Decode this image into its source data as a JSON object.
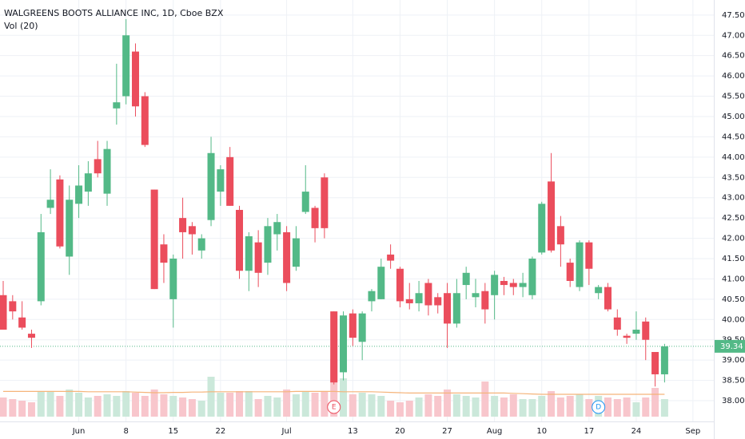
{
  "chart_data": {
    "type": "candlestick",
    "title": "WALGREENS BOOTS ALLIANCE INC, 1D, Cboe BZX",
    "volume_title": "Vol (20)",
    "categories": [
      null,
      null,
      null,
      null,
      null,
      null,
      null,
      null,
      "Jun",
      null,
      null,
      null,
      null,
      "8",
      null,
      null,
      null,
      null,
      "15",
      null,
      null,
      null,
      null,
      "22",
      null,
      null,
      null,
      null,
      null,
      null,
      "Jul",
      null,
      null,
      null,
      null,
      null,
      null,
      "13",
      null,
      null,
      null,
      null,
      "20",
      null,
      null,
      null,
      null,
      "27",
      null,
      null,
      null,
      null,
      "Aug",
      null,
      null,
      null,
      null,
      "10",
      null,
      null,
      null,
      null,
      "17",
      null,
      null,
      null,
      null,
      "24",
      null,
      null,
      null
    ],
    "future_categories": [
      null,
      null,
      "Sep"
    ],
    "open": [
      40.6,
      40.45,
      40.05,
      39.65,
      40.45,
      42.75,
      43.45,
      41.55,
      42.85,
      43.15,
      43.95,
      43.1,
      45.2,
      45.5,
      46.6,
      45.5,
      43.2,
      41.85,
      40.5,
      42.5,
      42.3,
      41.7,
      42.45,
      43.15,
      44.0,
      42.7,
      41.2,
      41.9,
      41.4,
      42.1,
      42.15,
      41.3,
      42.65,
      42.75,
      43.5,
      40.2,
      38.7,
      40.15,
      39.45,
      40.45,
      40.5,
      41.6,
      41.25,
      40.5,
      40.4,
      40.9,
      40.55,
      40.65,
      39.9,
      40.85,
      40.55,
      40.7,
      40.6,
      40.95,
      40.9,
      40.8,
      40.6,
      41.65,
      43.4,
      42.3,
      41.4,
      40.8,
      41.9,
      40.65,
      40.8,
      40.05,
      39.6,
      39.65,
      39.95,
      39.2,
      38.65
    ],
    "high": [
      40.95,
      40.6,
      40.45,
      39.75,
      42.6,
      43.7,
      43.55,
      43.3,
      43.8,
      43.9,
      44.4,
      44.4,
      46.3,
      47.4,
      46.8,
      45.6,
      43.2,
      42.1,
      41.6,
      43.0,
      42.4,
      42.1,
      44.5,
      43.8,
      44.25,
      42.8,
      42.15,
      42.2,
      42.5,
      42.6,
      42.3,
      42.3,
      43.8,
      42.8,
      43.6,
      40.2,
      40.2,
      40.25,
      40.2,
      40.75,
      41.5,
      41.85,
      41.3,
      40.9,
      40.95,
      41.0,
      40.65,
      40.9,
      41.0,
      41.3,
      41.0,
      40.9,
      41.2,
      41.05,
      41.0,
      41.15,
      41.55,
      42.9,
      44.1,
      42.55,
      41.5,
      41.95,
      41.95,
      40.85,
      40.9,
      40.25,
      39.65,
      40.2,
      40.05,
      39.2,
      39.4
    ],
    "low": [
      39.75,
      40.0,
      39.75,
      39.3,
      40.35,
      42.6,
      41.75,
      41.1,
      42.5,
      42.8,
      43.5,
      42.8,
      44.8,
      45.3,
      45.0,
      44.25,
      40.75,
      40.9,
      39.8,
      41.5,
      41.6,
      41.5,
      42.3,
      42.8,
      42.8,
      41.0,
      40.7,
      40.8,
      41.1,
      41.7,
      40.7,
      41.2,
      42.6,
      41.9,
      42.0,
      38.4,
      38.5,
      39.35,
      39.0,
      40.2,
      40.5,
      41.25,
      40.3,
      40.25,
      40.2,
      40.1,
      40.15,
      39.3,
      39.8,
      40.5,
      40.3,
      39.9,
      40.0,
      40.6,
      40.6,
      40.55,
      40.5,
      41.6,
      41.65,
      41.3,
      40.8,
      40.7,
      40.85,
      40.5,
      40.2,
      39.6,
      39.4,
      39.5,
      39.0,
      38.35,
      38.45
    ],
    "close": [
      39.75,
      40.2,
      39.8,
      39.55,
      42.15,
      42.95,
      41.8,
      42.95,
      43.3,
      43.6,
      43.6,
      44.2,
      45.35,
      47.0,
      45.25,
      44.3,
      40.75,
      41.4,
      41.5,
      42.15,
      42.1,
      42.0,
      44.1,
      43.7,
      42.8,
      41.2,
      42.05,
      41.15,
      42.3,
      42.4,
      40.9,
      42.0,
      43.15,
      42.25,
      42.25,
      38.45,
      40.1,
      39.55,
      40.15,
      40.7,
      41.3,
      41.45,
      40.45,
      40.4,
      40.65,
      40.35,
      40.35,
      39.9,
      40.65,
      41.15,
      40.65,
      40.25,
      41.1,
      40.85,
      40.8,
      40.9,
      41.5,
      42.85,
      41.7,
      41.85,
      40.95,
      41.9,
      41.25,
      40.8,
      40.25,
      39.75,
      39.55,
      39.75,
      39.5,
      38.65,
      39.34
    ],
    "volume": [
      6.0,
      5.5,
      5.0,
      4.5,
      7.8,
      7.8,
      6.5,
      8.5,
      7.5,
      6.0,
      6.5,
      7.0,
      6.5,
      8.0,
      7.5,
      6.5,
      8.5,
      7.0,
      6.5,
      6.0,
      5.5,
      5.0,
      12.5,
      7.5,
      7.5,
      8.0,
      8.0,
      5.5,
      6.5,
      6.0,
      8.5,
      7.0,
      8.0,
      7.5,
      8.0,
      18.0,
      12.0,
      7.0,
      7.5,
      7.0,
      6.5,
      5.0,
      4.5,
      5.0,
      6.0,
      7.0,
      6.5,
      8.5,
      7.0,
      6.5,
      6.0,
      11.0,
      6.5,
      6.0,
      7.0,
      5.5,
      5.5,
      6.5,
      8.0,
      6.0,
      6.5,
      7.0,
      5.5,
      6.5,
      6.0,
      5.5,
      6.0,
      4.5,
      6.0,
      9.0,
      5.5
    ],
    "volume_ma": [
      7.9,
      7.9,
      7.9,
      7.9,
      7.9,
      7.9,
      7.9,
      7.9,
      7.9,
      7.8,
      7.8,
      7.8,
      7.8,
      7.8,
      7.7,
      7.6,
      7.5,
      7.5,
      7.6,
      7.6,
      7.7,
      7.7,
      7.8,
      7.8,
      7.8,
      7.8,
      7.8,
      7.8,
      7.8,
      7.8,
      7.8,
      7.9,
      7.9,
      7.9,
      7.9,
      7.9,
      7.8,
      7.8,
      7.8,
      7.8,
      7.7,
      7.6,
      7.5,
      7.4,
      7.4,
      7.4,
      7.4,
      7.4,
      7.4,
      7.4,
      7.4,
      7.4,
      7.4,
      7.4,
      7.3,
      7.2,
      7.1,
      7.0,
      7.0,
      7.0,
      7.0,
      7.0,
      7.0,
      7.0,
      7.0,
      7.0,
      7.0,
      7.0,
      7.0,
      7.0,
      7.0
    ],
    "up_color": "#53b987",
    "down_color": "#eb4d5c",
    "volume_up_color": "#cbe8da",
    "volume_down_color": "#f8c6cc",
    "volume_ma_color": "#f5b47a",
    "last_price": 39.34,
    "events": [
      {
        "label": "E",
        "candle": 35
      },
      {
        "label": "D",
        "candle": 63
      }
    ],
    "ylim": [
      37.45,
      47.87
    ],
    "yticks": [
      {
        "value": 38,
        "label": "38.00"
      },
      {
        "value": 38.5,
        "label": "38.50"
      },
      {
        "value": 39,
        "label": "39.00"
      },
      {
        "value": 39.5,
        "label": "39.50"
      },
      {
        "value": 40,
        "label": "40.00"
      },
      {
        "value": 40.5,
        "label": "40.50"
      },
      {
        "value": 41,
        "label": "41.00"
      },
      {
        "value": 41.5,
        "label": "41.50"
      },
      {
        "value": 42,
        "label": "42.00"
      },
      {
        "value": 42.5,
        "label": "42.50"
      },
      {
        "value": 43,
        "label": "43.00"
      },
      {
        "value": 43.5,
        "label": "43.50"
      },
      {
        "value": 44,
        "label": "44.00"
      },
      {
        "value": 44.5,
        "label": "44.50"
      },
      {
        "value": 45,
        "label": "45.00"
      },
      {
        "value": 45.5,
        "label": "45.50"
      },
      {
        "value": 46,
        "label": "46.00"
      },
      {
        "value": 46.5,
        "label": "46.50"
      },
      {
        "value": 47,
        "label": "47.00"
      },
      {
        "value": 47.5,
        "label": "47.50"
      }
    ],
    "grid": true
  }
}
